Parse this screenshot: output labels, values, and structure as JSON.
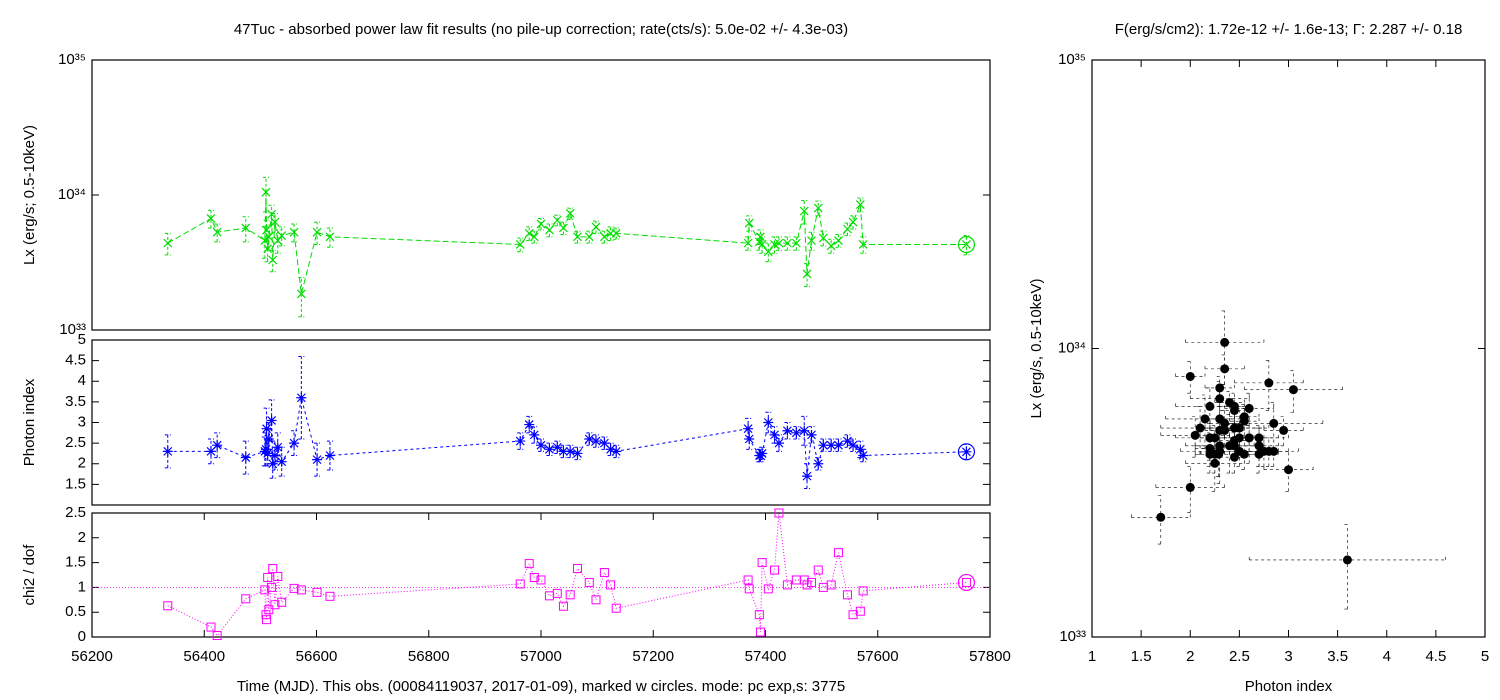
{
  "chart_data": [
    {
      "type": "line",
      "title": "47Tuc  - absorbed power law fit results (no pile-up correction; rate(cts/s): 5.0e-02 +/- 4.3e-03)",
      "ylabel": "Lx (erg/s; 0.5-10keV)",
      "ylog": true,
      "xlim": [
        56200,
        57800
      ],
      "ylim": [
        1e+33,
        1e+35
      ],
      "yticks": [
        {
          "value": 1e+33,
          "label": "10³³"
        },
        {
          "value": 1e+34,
          "label": "10³⁴"
        },
        {
          "value": 1e+35,
          "label": "10³⁵"
        }
      ],
      "highlight_last": true,
      "x": [
        56335,
        56412,
        56423,
        56474,
        56508,
        56510,
        56511,
        56513,
        56515,
        56520,
        56522,
        56526,
        56531,
        56538,
        56560,
        56573,
        56601,
        56624,
        56963,
        56979,
        56988,
        57000,
        57015,
        57029,
        57040,
        57052,
        57065,
        57086,
        57098,
        57113,
        57124,
        57134,
        57369,
        57371,
        57389,
        57391,
        57394,
        57405,
        57416,
        57424,
        57439,
        57455,
        57469,
        57474,
        57482,
        57494,
        57503,
        57517,
        57530,
        57546,
        57556,
        57569,
        57574,
        57758
      ],
      "series": [
        {
          "color": "#00dd00",
          "marker": "x",
          "dash": "6,3",
          "values": [
            4.4e+33,
            6.7e+33,
            5.3e+33,
            5.7e+33,
            4.6e+33,
            1.05e+34,
            5.5e+33,
            4e+33,
            4.9e+33,
            7.2e+33,
            3.3e+33,
            6.3e+33,
            4.6e+33,
            5e+33,
            5.3e+33,
            1.85e+33,
            5.3e+33,
            4.9e+33,
            4.3e+33,
            5.2e+33,
            4.9e+33,
            6.1e+33,
            5.5e+33,
            6.5e+33,
            5.7e+33,
            7.3e+33,
            4.9e+33,
            4.9e+33,
            5.8e+33,
            4.9e+33,
            5.2e+33,
            5.2e+33,
            4.4e+33,
            6.2e+33,
            4.5e+33,
            4.9e+33,
            4.3e+33,
            3.8e+33,
            4.3e+33,
            4.4e+33,
            4.4e+33,
            4.4e+33,
            7.6e+33,
            2.6e+33,
            4.6e+33,
            8e+33,
            4.8e+33,
            4.2e+33,
            4.6e+33,
            5.6e+33,
            6.3e+33,
            8.5e+33,
            4.3e+33,
            4.3e+33
          ],
          "errors": [
            8e+32,
            1e+33,
            8e+32,
            1.2e+33,
            1.2e+33,
            3e+33,
            1e+33,
            8e+32,
            9e+32,
            1.2e+33,
            6e+32,
            1e+33,
            9e+32,
            8e+32,
            8e+32,
            6e+32,
            1e+33,
            8e+32,
            5e+32,
            6e+32,
            5e+32,
            6e+32,
            6e+32,
            6e+32,
            6e+32,
            7e+32,
            5e+32,
            5e+32,
            6e+32,
            5e+32,
            6e+32,
            5e+32,
            5e+32,
            8e+32,
            6e+32,
            6e+32,
            6e+32,
            6e+32,
            6e+32,
            5e+32,
            5e+32,
            5e+32,
            1.5e+33,
            5e+32,
            7e+32,
            1e+33,
            6e+32,
            5e+32,
            5e+32,
            6e+32,
            7e+32,
            1e+33,
            6e+32,
            7e+32
          ]
        }
      ]
    },
    {
      "type": "line",
      "ylabel": "Photon index",
      "xlim": [
        56200,
        57800
      ],
      "ylim": [
        1,
        5
      ],
      "yticks": [
        1.5,
        2,
        2.5,
        3,
        3.5,
        4,
        4.5,
        5
      ],
      "highlight_last": true,
      "x": [
        56335,
        56412,
        56423,
        56474,
        56508,
        56510,
        56511,
        56513,
        56515,
        56520,
        56522,
        56526,
        56531,
        56538,
        56560,
        56573,
        56601,
        56624,
        56963,
        56979,
        56988,
        57000,
        57015,
        57029,
        57040,
        57052,
        57065,
        57086,
        57098,
        57113,
        57124,
        57134,
        57369,
        57371,
        57389,
        57391,
        57394,
        57405,
        57416,
        57424,
        57439,
        57455,
        57469,
        57474,
        57482,
        57494,
        57503,
        57517,
        57530,
        57546,
        57556,
        57569,
        57574,
        57758
      ],
      "series": [
        {
          "color": "#0000ff",
          "marker": "asterisk",
          "dash": "3,3",
          "values": [
            2.3,
            2.3,
            2.45,
            2.15,
            2.3,
            2.35,
            2.85,
            2.25,
            2.6,
            3.05,
            2.0,
            2.2,
            2.4,
            2.05,
            2.5,
            3.6,
            2.1,
            2.2,
            2.55,
            2.95,
            2.7,
            2.45,
            2.35,
            2.4,
            2.3,
            2.3,
            2.25,
            2.6,
            2.55,
            2.5,
            2.35,
            2.3,
            2.85,
            2.6,
            2.2,
            2.2,
            2.25,
            3.0,
            2.7,
            2.5,
            2.8,
            2.75,
            2.8,
            1.7,
            2.7,
            2.0,
            2.45,
            2.45,
            2.45,
            2.55,
            2.45,
            2.35,
            2.2,
            2.29
          ],
          "errors": [
            0.4,
            0.3,
            0.3,
            0.4,
            0.35,
            0.4,
            0.5,
            0.3,
            0.4,
            0.5,
            0.35,
            0.35,
            0.35,
            0.35,
            0.3,
            1.0,
            0.4,
            0.35,
            0.2,
            0.2,
            0.2,
            0.15,
            0.15,
            0.15,
            0.15,
            0.15,
            0.15,
            0.15,
            0.15,
            0.15,
            0.15,
            0.15,
            0.25,
            0.25,
            0.15,
            0.15,
            0.15,
            0.25,
            0.2,
            0.2,
            0.2,
            0.15,
            0.35,
            0.3,
            0.2,
            0.15,
            0.15,
            0.15,
            0.15,
            0.15,
            0.15,
            0.2,
            0.15,
            0.18
          ]
        }
      ]
    },
    {
      "type": "line",
      "ylabel": "chi2 / dof",
      "xlabel": "Time (MJD). This obs. (00084119037, 2017-01-09), marked w circles. mode: pc exp,s: 3775",
      "xlim": [
        56200,
        57800
      ],
      "xticks": [
        56200,
        56400,
        56600,
        56800,
        57000,
        57200,
        57400,
        57600,
        57800
      ],
      "ylim": [
        0,
        2.5
      ],
      "yticks": [
        0,
        0.5,
        1,
        1.5,
        2,
        2.5
      ],
      "hline": 1,
      "highlight_last": true,
      "x": [
        56335,
        56412,
        56423,
        56474,
        56508,
        56510,
        56511,
        56513,
        56515,
        56520,
        56522,
        56526,
        56531,
        56538,
        56560,
        56573,
        56601,
        56624,
        56963,
        56979,
        56988,
        57000,
        57015,
        57029,
        57040,
        57052,
        57065,
        57086,
        57098,
        57113,
        57124,
        57134,
        57369,
        57371,
        57389,
        57391,
        57394,
        57405,
        57416,
        57424,
        57439,
        57455,
        57469,
        57474,
        57482,
        57494,
        57503,
        57517,
        57530,
        57546,
        57556,
        57569,
        57574,
        57758
      ],
      "series": [
        {
          "color": "#ff00ff",
          "marker": "square",
          "dash": "1,2",
          "values": [
            0.63,
            0.2,
            0.03,
            0.77,
            0.95,
            0.45,
            0.35,
            1.2,
            0.55,
            1.0,
            1.38,
            0.65,
            1.22,
            0.7,
            0.98,
            0.95,
            0.9,
            0.82,
            1.07,
            1.48,
            1.2,
            1.15,
            0.83,
            0.88,
            0.62,
            0.85,
            1.38,
            1.1,
            0.75,
            1.3,
            1.05,
            0.58,
            1.15,
            0.97,
            0.45,
            0.1,
            1.5,
            0.97,
            1.35,
            2.5,
            1.05,
            1.15,
            1.15,
            1.05,
            1.1,
            1.35,
            1.0,
            1.05,
            1.7,
            0.85,
            0.45,
            0.52,
            0.93,
            1.1
          ]
        }
      ]
    },
    {
      "type": "scatter",
      "title": "F(erg/s/cm2): 1.72e-12 +/- 1.6e-13; Γ: 2.287 +/- 0.18",
      "xlabel": "Photon index",
      "ylabel": "Lx (erg/s, 0.5-10keV)",
      "color": "#000000",
      "xlim": [
        1,
        5
      ],
      "xticks": [
        1,
        1.5,
        2,
        2.5,
        3,
        3.5,
        4,
        4.5,
        5
      ],
      "ylog": true,
      "ylim": [
        1e+33,
        1e+35
      ],
      "yticks": [
        {
          "value": 1e+33,
          "label": "10³³"
        },
        {
          "value": 1e+34,
          "label": "10³⁴"
        },
        {
          "value": 1e+35,
          "label": "10³⁵"
        }
      ],
      "x": [
        2.3,
        2.3,
        2.45,
        2.15,
        2.3,
        2.35,
        2.85,
        2.25,
        2.6,
        3.05,
        2.0,
        2.2,
        2.4,
        2.05,
        2.5,
        3.6,
        2.1,
        2.2,
        2.55,
        2.95,
        2.7,
        2.45,
        2.35,
        2.4,
        2.3,
        2.3,
        2.25,
        2.6,
        2.55,
        2.5,
        2.35,
        2.3,
        2.85,
        2.6,
        2.2,
        2.2,
        2.25,
        3.0,
        2.7,
        2.5,
        2.8,
        2.75,
        2.8,
        1.7,
        2.7,
        2.0,
        2.45,
        2.45,
        2.45,
        2.55,
        2.45,
        2.35,
        2.2,
        2.29
      ],
      "xerrors": [
        0.4,
        0.3,
        0.3,
        0.4,
        0.35,
        0.4,
        0.5,
        0.3,
        0.4,
        0.5,
        0.35,
        0.35,
        0.35,
        0.35,
        0.3,
        1.0,
        0.4,
        0.35,
        0.2,
        0.2,
        0.2,
        0.15,
        0.15,
        0.15,
        0.15,
        0.15,
        0.15,
        0.15,
        0.15,
        0.15,
        0.15,
        0.15,
        0.25,
        0.25,
        0.15,
        0.15,
        0.15,
        0.25,
        0.2,
        0.2,
        0.2,
        0.15,
        0.35,
        0.3,
        0.2,
        0.15,
        0.15,
        0.15,
        0.15,
        0.15,
        0.15,
        0.2,
        0.15,
        0.18
      ],
      "values": [
        4.4e+33,
        6.7e+33,
        5.3e+33,
        5.7e+33,
        4.6e+33,
        1.05e+34,
        5.5e+33,
        4e+33,
        4.9e+33,
        7.2e+33,
        3.3e+33,
        6.3e+33,
        4.6e+33,
        5e+33,
        5.3e+33,
        1.85e+33,
        5.3e+33,
        4.9e+33,
        4.3e+33,
        5.2e+33,
        4.9e+33,
        6.1e+33,
        5.5e+33,
        6.5e+33,
        5.7e+33,
        7.3e+33,
        4.9e+33,
        4.9e+33,
        5.8e+33,
        4.9e+33,
        5.2e+33,
        5.2e+33,
        4.4e+33,
        6.2e+33,
        4.5e+33,
        4.9e+33,
        4.3e+33,
        3.8e+33,
        4.3e+33,
        4.4e+33,
        4.4e+33,
        4.4e+33,
        7.6e+33,
        2.6e+33,
        4.6e+33,
        8e+33,
        4.8e+33,
        4.2e+33,
        4.6e+33,
        5.6e+33,
        6.3e+33,
        8.5e+33,
        4.3e+33,
        4.3e+33
      ],
      "errors": [
        8e+32,
        1e+33,
        8e+32,
        1.2e+33,
        1.2e+33,
        3e+33,
        1e+33,
        8e+32,
        9e+32,
        1.2e+33,
        6e+32,
        1e+33,
        9e+32,
        8e+32,
        8e+32,
        6e+32,
        1e+33,
        8e+32,
        5e+32,
        6e+32,
        5e+32,
        6e+32,
        6e+32,
        6e+32,
        6e+32,
        7e+32,
        5e+32,
        5e+32,
        6e+32,
        5e+32,
        6e+32,
        5e+32,
        5e+32,
        8e+32,
        6e+32,
        6e+32,
        6e+32,
        6e+32,
        6e+32,
        5e+32,
        5e+32,
        5e+32,
        1.5e+33,
        5e+32,
        7e+32,
        1e+33,
        6e+32,
        5e+32,
        5e+32,
        6e+32,
        7e+32,
        1e+33,
        6e+32,
        7e+32
      ]
    }
  ]
}
